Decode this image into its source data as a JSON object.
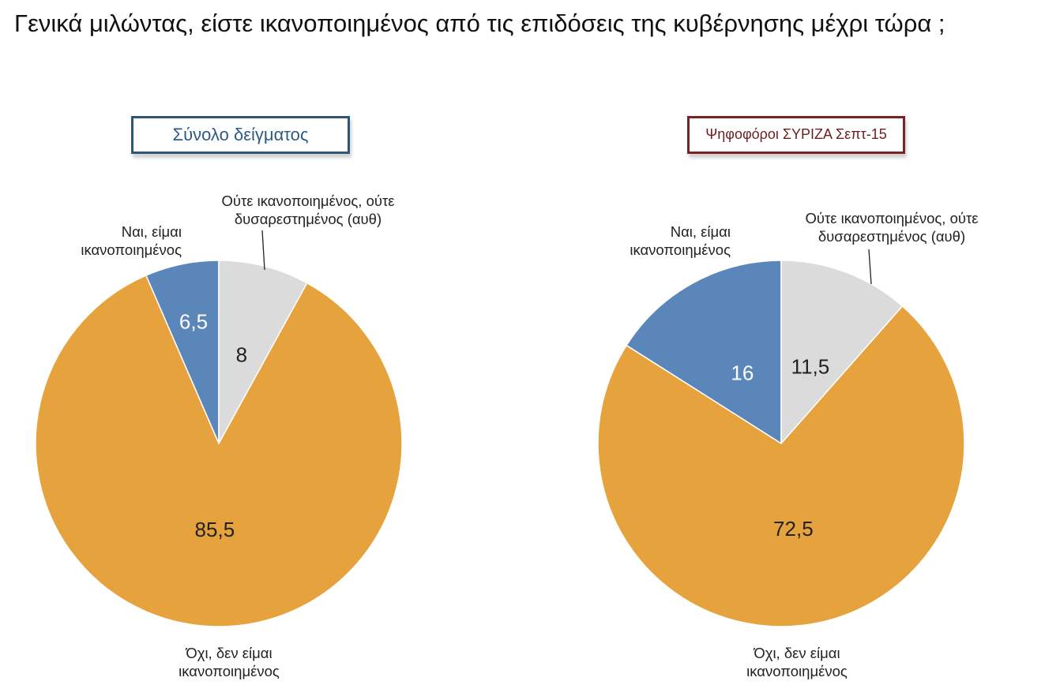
{
  "title": "Γενικά μιλώντας, είστε ικανοποιημένος από τις επιδόσεις της κυβέρνησης μέχρι τώρα ;",
  "chart_data": [
    {
      "type": "pie",
      "title": "Σύνολο δείγματος",
      "title_color": "#2e5a86",
      "slices": [
        {
          "label_lines": [
            "Ναι, είμαι",
            "ικανοποιημένος"
          ],
          "value": 6.5,
          "value_label": "6,5",
          "color": "#5b86b9",
          "value_text_color": "#ffffff"
        },
        {
          "label_lines": [
            "Ούτε ικανοποιημένος, ούτε",
            "δυσαρεστημένος (αυθ)"
          ],
          "value": 8,
          "value_label": "8",
          "color": "#dbdbdb",
          "value_text_color": "#222222"
        },
        {
          "label_lines": [
            "Όχι, δεν είμαι",
            "ικανοποιημένος"
          ],
          "value": 85.5,
          "value_label": "85,5",
          "color": "#e6a23d",
          "value_text_color": "#222222"
        }
      ]
    },
    {
      "type": "pie",
      "title": "Ψηφοφόροι ΣΥΡΙΖΑ Σεπτ-15",
      "title_color": "#6e1e1e",
      "slices": [
        {
          "label_lines": [
            "Ναι, είμαι",
            "ικανοποιημένος"
          ],
          "value": 16,
          "value_label": "16",
          "color": "#5b86b9",
          "value_text_color": "#ffffff"
        },
        {
          "label_lines": [
            "Ούτε ικανοποιημένος, ούτε",
            "δυσαρεστημένος (αυθ)"
          ],
          "value": 11.5,
          "value_label": "11,5",
          "color": "#dbdbdb",
          "value_text_color": "#222222"
        },
        {
          "label_lines": [
            "Όχι, δεν είμαι",
            "ικανοποιημένος"
          ],
          "value": 72.5,
          "value_label": "72,5",
          "color": "#e6a23d",
          "value_text_color": "#222222"
        }
      ]
    }
  ]
}
